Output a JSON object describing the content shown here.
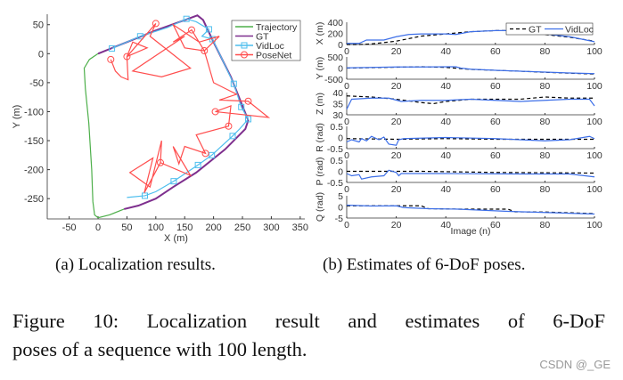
{
  "chart_data": [
    {
      "type": "line",
      "xlabel": "X (m)",
      "ylabel": "Y (m)",
      "xlim": [
        -88,
        358
      ],
      "ylim": [
        -285,
        68
      ],
      "xticks": [
        -50,
        0,
        50,
        100,
        150,
        200,
        250,
        300,
        350
      ],
      "yticks": [
        50,
        0,
        -50,
        -100,
        -150,
        -200,
        -250
      ],
      "legend": "top-right",
      "series": [
        {
          "name": "Trajectory",
          "color": "#4daf4a",
          "marker": "none",
          "points": [
            [
              0,
              0
            ],
            [
              -15,
              -10
            ],
            [
              -24,
              -25
            ],
            [
              -22,
              -60
            ],
            [
              -16,
              -120
            ],
            [
              -11,
              -200
            ],
            [
              -9,
              -255
            ],
            [
              -6,
              -278
            ],
            [
              0,
              -283
            ],
            [
              20,
              -278
            ],
            [
              45,
              -268
            ]
          ]
        },
        {
          "name": "GT",
          "color": "#7e2f8e",
          "marker": "none",
          "points": [
            [
              0,
              0
            ],
            [
              50,
              20
            ],
            [
              100,
              40
            ],
            [
              150,
              58
            ],
            [
              172,
              66
            ],
            [
              182,
              58
            ],
            [
              200,
              20
            ],
            [
              230,
              -40
            ],
            [
              250,
              -90
            ],
            [
              260,
              -115
            ],
            [
              255,
              -130
            ],
            [
              220,
              -165
            ],
            [
              170,
              -205
            ],
            [
              130,
              -230
            ],
            [
              100,
              -250
            ],
            [
              70,
              -262
            ],
            [
              45,
              -268
            ]
          ]
        },
        {
          "name": "VidLoc",
          "color": "#4dbeee",
          "marker": "square",
          "points": [
            [
              24,
              9
            ],
            [
              73,
              30
            ],
            [
              120,
              45
            ],
            [
              153,
              60
            ],
            [
              170,
              55
            ],
            [
              192,
              42
            ],
            [
              180,
              30
            ],
            [
              198,
              25
            ],
            [
              215,
              -10
            ],
            [
              235,
              -52
            ],
            [
              248,
              -92
            ],
            [
              260,
              -113
            ],
            [
              245,
              -130
            ],
            [
              233,
              -142
            ],
            [
              197,
              -175
            ],
            [
              173,
              -192
            ],
            [
              131,
              -220
            ],
            [
              100,
              -238
            ],
            [
              81,
              -245
            ],
            [
              50,
              -248
            ]
          ],
          "markers": [
            [
              24,
              9
            ],
            [
              73,
              30
            ],
            [
              153,
              60
            ],
            [
              192,
              42
            ],
            [
              198,
              25
            ],
            [
              235,
              -52
            ],
            [
              248,
              -92
            ],
            [
              260,
              -113
            ],
            [
              233,
              -142
            ],
            [
              197,
              -175
            ],
            [
              173,
              -192
            ],
            [
              131,
              -220
            ],
            [
              81,
              -245
            ]
          ]
        },
        {
          "name": "PoseNet",
          "color": "#ff4d4d",
          "marker": "circle",
          "points": [
            [
              22,
              -10
            ],
            [
              30,
              -30
            ],
            [
              40,
              -40
            ],
            [
              52,
              -45
            ],
            [
              50,
              -5
            ],
            [
              60,
              20
            ],
            [
              85,
              10
            ],
            [
              50,
              -5
            ],
            [
              100,
              52
            ],
            [
              90,
              30
            ],
            [
              160,
              -25
            ],
            [
              110,
              -40
            ],
            [
              60,
              -30
            ],
            [
              150,
              30
            ],
            [
              130,
              20
            ],
            [
              162,
              41
            ],
            [
              184,
              5
            ],
            [
              150,
              10
            ],
            [
              130,
              50
            ],
            [
              175,
              20
            ],
            [
              210,
              30
            ],
            [
              184,
              5
            ],
            [
              200,
              -50
            ],
            [
              240,
              -70
            ],
            [
              210,
              -80
            ],
            [
              260,
              -82
            ],
            [
              295,
              -110
            ],
            [
              203,
              -100
            ],
            [
              230,
              -90
            ],
            [
              226,
              -125
            ],
            [
              170,
              -140
            ],
            [
              186,
              -172
            ],
            [
              150,
              -160
            ],
            [
              140,
              -190
            ],
            [
              130,
              -160
            ],
            [
              160,
              -210
            ],
            [
              108,
              -188
            ],
            [
              110,
              -150
            ],
            [
              90,
              -230
            ],
            [
              55,
              -205
            ],
            [
              95,
              -180
            ],
            [
              80,
              -240
            ],
            [
              108,
              -188
            ]
          ],
          "markers": [
            [
              22,
              -10
            ],
            [
              50,
              -5
            ],
            [
              100,
              52
            ],
            [
              162,
              41
            ],
            [
              184,
              5
            ],
            [
              260,
              -82
            ],
            [
              203,
              -100
            ],
            [
              226,
              -125
            ],
            [
              186,
              -172
            ],
            [
              108,
              -188
            ]
          ]
        }
      ]
    },
    {
      "type": "line",
      "xlabel": "Image (n)",
      "xlim": [
        0,
        100
      ],
      "xticks": [
        0,
        20,
        40,
        60,
        80,
        100
      ],
      "legend": "top-right",
      "series_names": [
        "GT",
        "VidLoc"
      ],
      "series_colors": {
        "GT": "#000000",
        "VidLoc": "#3d6fe8"
      },
      "subplots": [
        {
          "ylabel": "X (m)",
          "ylim": [
            0,
            400
          ],
          "yticks": [
            400,
            200,
            0
          ],
          "GT": [
            [
              0,
              0
            ],
            [
              5,
              0
            ],
            [
              10,
              10
            ],
            [
              20,
              60
            ],
            [
              30,
              150
            ],
            [
              40,
              190
            ],
            [
              50,
              230
            ],
            [
              60,
              250
            ],
            [
              70,
              250
            ],
            [
              80,
              180
            ],
            [
              90,
              130
            ],
            [
              100,
              60
            ]
          ],
          "VidLoc": [
            [
              0,
              20
            ],
            [
              5,
              20
            ],
            [
              8,
              80
            ],
            [
              15,
              80
            ],
            [
              20,
              140
            ],
            [
              25,
              180
            ],
            [
              30,
              190
            ],
            [
              40,
              190
            ],
            [
              44,
              180
            ],
            [
              50,
              230
            ],
            [
              60,
              250
            ],
            [
              70,
              250
            ],
            [
              80,
              190
            ],
            [
              90,
              140
            ],
            [
              100,
              50
            ]
          ]
        },
        {
          "ylabel": "Y (m)",
          "ylim": [
            -500,
            500
          ],
          "yticks": [
            500,
            0,
            -500
          ],
          "GT": [
            [
              0,
              0
            ],
            [
              20,
              40
            ],
            [
              30,
              60
            ],
            [
              40,
              30
            ],
            [
              50,
              -60
            ],
            [
              60,
              -100
            ],
            [
              70,
              -140
            ],
            [
              80,
              -190
            ],
            [
              90,
              -230
            ],
            [
              100,
              -270
            ]
          ],
          "VidLoc": [
            [
              0,
              10
            ],
            [
              20,
              50
            ],
            [
              30,
              50
            ],
            [
              44,
              60
            ],
            [
              46,
              0
            ],
            [
              50,
              -50
            ],
            [
              60,
              -100
            ],
            [
              70,
              -140
            ],
            [
              80,
              -180
            ],
            [
              90,
              -220
            ],
            [
              100,
              -250
            ]
          ]
        },
        {
          "ylabel": "Z (m)",
          "ylim": [
            30,
            40
          ],
          "yticks": [
            40,
            35,
            30
          ],
          "GT": [
            [
              0,
              38.5
            ],
            [
              10,
              38
            ],
            [
              20,
              37
            ],
            [
              30,
              35.5
            ],
            [
              35,
              35
            ],
            [
              40,
              36
            ],
            [
              50,
              37
            ],
            [
              60,
              37
            ],
            [
              70,
              37
            ],
            [
              80,
              38
            ],
            [
              90,
              37.5
            ],
            [
              100,
              37.5
            ]
          ],
          "VidLoc": [
            [
              0,
              32.5
            ],
            [
              2,
              37
            ],
            [
              10,
              37.5
            ],
            [
              17,
              37.5
            ],
            [
              22,
              36
            ],
            [
              30,
              36.5
            ],
            [
              40,
              36.5
            ],
            [
              50,
              37
            ],
            [
              60,
              36.5
            ],
            [
              70,
              36
            ],
            [
              80,
              36.5
            ],
            [
              90,
              37
            ],
            [
              98,
              37
            ],
            [
              100,
              34
            ]
          ]
        },
        {
          "ylabel": "R (rad)",
          "ylim": [
            -0.5,
            0.5
          ],
          "yticks": [
            0.5,
            0,
            -0.5
          ],
          "GT": [
            [
              0,
              -0.05
            ],
            [
              20,
              -0.08
            ],
            [
              40,
              -0.05
            ],
            [
              60,
              -0.08
            ],
            [
              80,
              -0.08
            ],
            [
              100,
              -0.08
            ]
          ],
          "VidLoc": [
            [
              0,
              -0.2
            ],
            [
              2,
              -0.1
            ],
            [
              5,
              -0.2
            ],
            [
              6,
              -0.05
            ],
            [
              8,
              -0.15
            ],
            [
              10,
              0.05
            ],
            [
              13,
              -0.1
            ],
            [
              15,
              0.02
            ],
            [
              17,
              -0.3
            ],
            [
              20,
              -0.35
            ],
            [
              21,
              -0.1
            ],
            [
              23,
              -0.05
            ],
            [
              40,
              0
            ],
            [
              60,
              -0.05
            ],
            [
              80,
              -0.15
            ],
            [
              90,
              -0.1
            ],
            [
              98,
              0.05
            ],
            [
              100,
              -0.05
            ]
          ]
        },
        {
          "ylabel": "P (rad)",
          "ylim": [
            -0.5,
            0.5
          ],
          "yticks": [
            0.5,
            0,
            -0.5
          ],
          "GT": [
            [
              0,
              0
            ],
            [
              30,
              0
            ],
            [
              60,
              -0.05
            ],
            [
              100,
              -0.08
            ]
          ],
          "VidLoc": [
            [
              0,
              -0.1
            ],
            [
              2,
              -0.2
            ],
            [
              5,
              -0.15
            ],
            [
              6,
              -0.35
            ],
            [
              10,
              -0.25
            ],
            [
              15,
              -0.2
            ],
            [
              17,
              0.05
            ],
            [
              20,
              -0.05
            ],
            [
              21,
              -0.2
            ],
            [
              22,
              -0.1
            ],
            [
              40,
              -0.1
            ],
            [
              70,
              -0.12
            ],
            [
              90,
              -0.12
            ],
            [
              100,
              -0.25
            ]
          ]
        },
        {
          "ylabel": "Q (rad)",
          "ylim": [
            -5,
            5
          ],
          "yticks": [
            5,
            0,
            -5
          ],
          "GT": [
            [
              0,
              0.5
            ],
            [
              20,
              0.5
            ],
            [
              30,
              0.5
            ],
            [
              33,
              -0.8
            ],
            [
              45,
              -1
            ],
            [
              65,
              -1
            ],
            [
              68,
              -2.2
            ],
            [
              80,
              -2.3
            ],
            [
              100,
              -3
            ]
          ],
          "VidLoc": [
            [
              0,
              0.8
            ],
            [
              10,
              0.4
            ],
            [
              20,
              0.5
            ],
            [
              23,
              -0.3
            ],
            [
              33,
              -0.8
            ],
            [
              45,
              -1
            ],
            [
              65,
              -2
            ],
            [
              80,
              -2.5
            ],
            [
              100,
              -3.2
            ]
          ]
        }
      ]
    }
  ],
  "captions": {
    "a": "(a) Localization results.",
    "b": "(b) Estimates of 6-DoF poses."
  },
  "figure_caption": {
    "line1": "Figure   10:  Localization result and estimates of 6-DoF",
    "line2": "poses of a sequence with 100 length."
  },
  "watermark": "CSDN @_GE"
}
